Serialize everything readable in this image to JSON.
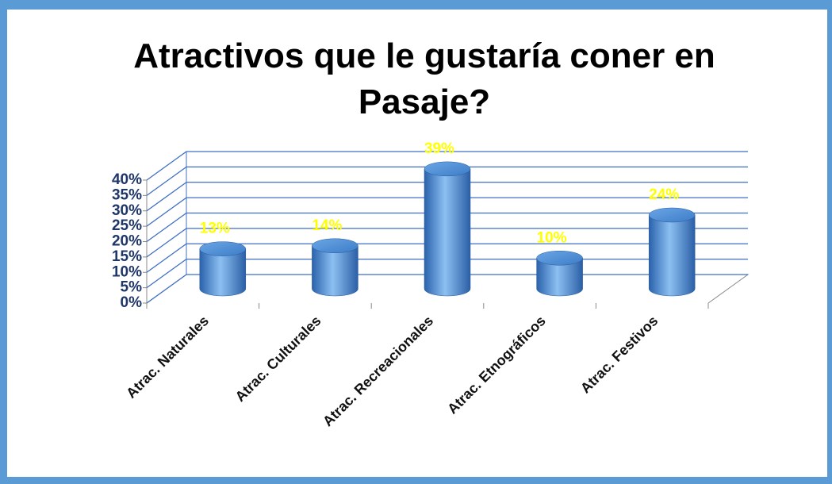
{
  "chart_data": {
    "type": "bar3d",
    "title": "Atractivos que le gustaría coner en Pasaje?",
    "categories": [
      "Atrac. Naturales",
      "Atrac. Culturales",
      "Atrac. Recreacionales",
      "Atrac. Etnográficos",
      "Atrac. Festivos"
    ],
    "values": [
      13,
      14,
      39,
      10,
      24
    ],
    "value_labels": [
      "13%",
      "14%",
      "39%",
      "10%",
      "24%"
    ],
    "color": "#4a90d9",
    "ylim": [
      0,
      40
    ],
    "yticks": [
      {
        "value": 0,
        "label": "0%"
      },
      {
        "value": 5,
        "label": "5%"
      },
      {
        "value": 10,
        "label": "10%"
      },
      {
        "value": 15,
        "label": "15%"
      },
      {
        "value": 20,
        "label": "20%"
      },
      {
        "value": 25,
        "label": "25%"
      },
      {
        "value": 30,
        "label": "30%"
      },
      {
        "value": 35,
        "label": "35%"
      },
      {
        "value": 40,
        "label": "40%"
      }
    ],
    "grid": true
  }
}
